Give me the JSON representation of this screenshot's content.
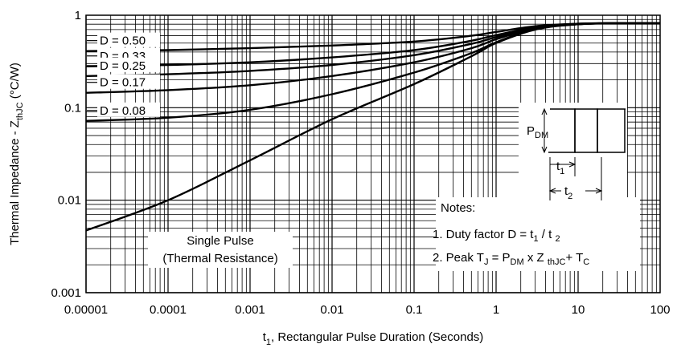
{
  "chart_data": {
    "type": "line",
    "xscale": "log",
    "yscale": "log",
    "xlim": [
      1e-05,
      100
    ],
    "ylim": [
      0.001,
      1
    ],
    "grid": true,
    "xlabel": {
      "prefix": "t",
      "sub": "1",
      "rest": ",  Rectangular Pulse Duration (Seconds)"
    },
    "ylabel": {
      "main": "Thermal Impedance - Z",
      "sub": "thJC",
      "rest": " (°C/W)"
    },
    "x_ticks": [
      {
        "v": 1e-05,
        "label": "0.00001"
      },
      {
        "v": 0.0001,
        "label": "0.0001"
      },
      {
        "v": 0.001,
        "label": "0.001"
      },
      {
        "v": 0.01,
        "label": "0.01"
      },
      {
        "v": 0.1,
        "label": "0.1"
      },
      {
        "v": 1,
        "label": "1"
      },
      {
        "v": 10,
        "label": "10"
      },
      {
        "v": 100,
        "label": "100"
      }
    ],
    "y_ticks": [
      {
        "v": 1,
        "label": "1"
      },
      {
        "v": 0.1,
        "label": "0.1"
      },
      {
        "v": 0.01,
        "label": "0.01"
      },
      {
        "v": 0.001,
        "label": "0.001"
      }
    ],
    "series": [
      {
        "name": "D = 0.50",
        "x": [
          1e-05,
          0.0001,
          0.001,
          0.01,
          0.1,
          0.5,
          1,
          3,
          10,
          30,
          100
        ],
        "y": [
          0.41,
          0.42,
          0.44,
          0.47,
          0.52,
          0.6,
          0.66,
          0.76,
          0.81,
          0.82,
          0.82
        ]
      },
      {
        "name": "D = 0.33",
        "x": [
          1e-05,
          0.0001,
          0.001,
          0.01,
          0.1,
          0.5,
          1,
          3,
          10,
          30,
          100
        ],
        "y": [
          0.28,
          0.29,
          0.31,
          0.35,
          0.42,
          0.53,
          0.61,
          0.74,
          0.81,
          0.82,
          0.82
        ]
      },
      {
        "name": "D = 0.25",
        "x": [
          1e-05,
          0.0001,
          0.001,
          0.01,
          0.1,
          0.5,
          1,
          3,
          10,
          30,
          100
        ],
        "y": [
          0.22,
          0.23,
          0.25,
          0.29,
          0.37,
          0.49,
          0.58,
          0.73,
          0.8,
          0.82,
          0.82
        ]
      },
      {
        "name": "D = 0.17",
        "x": [
          1e-05,
          0.0001,
          0.001,
          0.01,
          0.1,
          0.5,
          1,
          3,
          10,
          30,
          100
        ],
        "y": [
          0.145,
          0.155,
          0.175,
          0.22,
          0.31,
          0.44,
          0.55,
          0.72,
          0.8,
          0.82,
          0.82
        ]
      },
      {
        "name": "D = 0.08",
        "x": [
          1e-05,
          0.0001,
          0.001,
          0.01,
          0.1,
          0.5,
          1,
          3,
          10,
          30,
          100
        ],
        "y": [
          0.072,
          0.078,
          0.095,
          0.14,
          0.24,
          0.39,
          0.51,
          0.71,
          0.8,
          0.82,
          0.82
        ]
      },
      {
        "name": "Single Pulse (Thermal Resistance)",
        "x": [
          1e-05,
          0.0001,
          0.001,
          0.01,
          0.1,
          0.5,
          1,
          3,
          10,
          30,
          100
        ],
        "y": [
          0.0047,
          0.01,
          0.027,
          0.075,
          0.18,
          0.36,
          0.5,
          0.7,
          0.8,
          0.82,
          0.82
        ]
      }
    ],
    "annotations": {
      "single_pulse_line1": "Single Pulse",
      "single_pulse_line2": "(Thermal Resistance)",
      "notes_title": "Notes:",
      "note1_text": "1. Duty factor D =  t",
      "note1_sub1": "1",
      "note1_mid": " / t ",
      "note1_sub2": "2",
      "note2_text": "2. Peak T",
      "note2_subJ": "J",
      "note2_eq": " = P",
      "note2_subDM": "DM",
      "note2_x": " x Z ",
      "note2_subthJC": "thJC",
      "note2_plus": "+ T",
      "note2_subC": "C",
      "inset_P": "P",
      "inset_DM": "DM",
      "inset_t": "t",
      "inset_t1_sub": "1",
      "inset_t2_sub": "2"
    }
  }
}
